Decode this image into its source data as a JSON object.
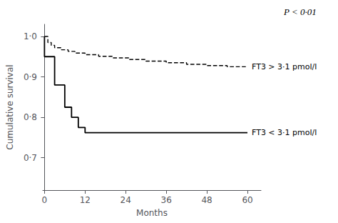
{
  "chart_data": {
    "type": "line",
    "xlabel": "Months",
    "ylabel": "Cumulative survival",
    "annotation": "P < 0·01",
    "series": [
      {
        "name": "FT3 > 3·1 pmol/l",
        "color": "#000000",
        "line_style": "dashed",
        "x": [
          0,
          0,
          1,
          1,
          2,
          2,
          3,
          3,
          5,
          5,
          7,
          7,
          9,
          9,
          12,
          12,
          16,
          16,
          20,
          20,
          25,
          25,
          30,
          30,
          36,
          36,
          42,
          42,
          48,
          48,
          54,
          54,
          60
        ],
        "values": [
          1.0,
          1.0,
          1.0,
          0.985,
          0.985,
          0.978,
          0.978,
          0.972,
          0.972,
          0.967,
          0.967,
          0.963,
          0.963,
          0.959,
          0.959,
          0.955,
          0.955,
          0.951,
          0.951,
          0.947,
          0.947,
          0.943,
          0.943,
          0.939,
          0.939,
          0.935,
          0.935,
          0.931,
          0.931,
          0.928,
          0.928,
          0.925,
          0.925
        ]
      },
      {
        "name": "FT3 < 3·1 pmol/l",
        "color": "#000000",
        "line_style": "solid",
        "x": [
          0,
          0,
          3,
          3,
          6,
          6,
          8,
          8,
          10,
          10,
          12,
          12,
          60
        ],
        "values": [
          1.0,
          0.95,
          0.95,
          0.88,
          0.88,
          0.825,
          0.825,
          0.8,
          0.8,
          0.775,
          0.775,
          0.762,
          0.762
        ]
      }
    ],
    "xlim": [
      -0.5,
      64
    ],
    "xticks": [
      0,
      12,
      24,
      36,
      48,
      60
    ],
    "ylim": [
      0.62,
      1.03
    ],
    "yticks": [
      {
        "value": 0.7,
        "label": "0·7"
      },
      {
        "value": 0.8,
        "label": "0·8"
      },
      {
        "value": 0.9,
        "label": "0·9"
      },
      {
        "value": 1.0,
        "label": "1·0"
      }
    ],
    "grid": false
  }
}
